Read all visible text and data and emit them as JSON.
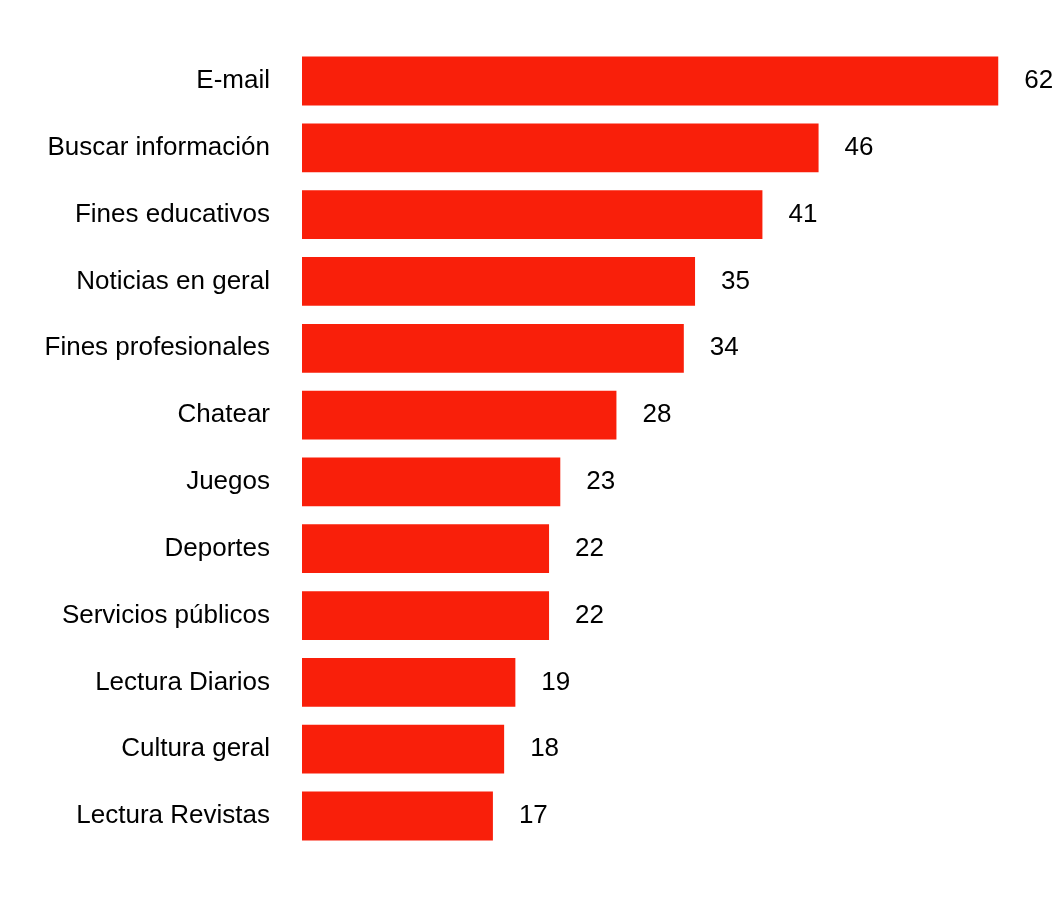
{
  "chart_data": {
    "type": "bar",
    "orientation": "horizontal",
    "categories": [
      "E-mail",
      "Buscar información",
      "Fines educativos",
      "Noticias en geral",
      "Fines profesionales",
      "Chatear",
      "Juegos",
      "Deportes",
      "Servicios públicos",
      "Lectura Diarios",
      "Cultura geral",
      "Lectura Revistas"
    ],
    "values": [
      62,
      46,
      41,
      35,
      34,
      28,
      23,
      22,
      22,
      19,
      18,
      17
    ],
    "color": "#f91f0a",
    "data_labels": true,
    "legend": false,
    "tick_labels": "y"
  }
}
